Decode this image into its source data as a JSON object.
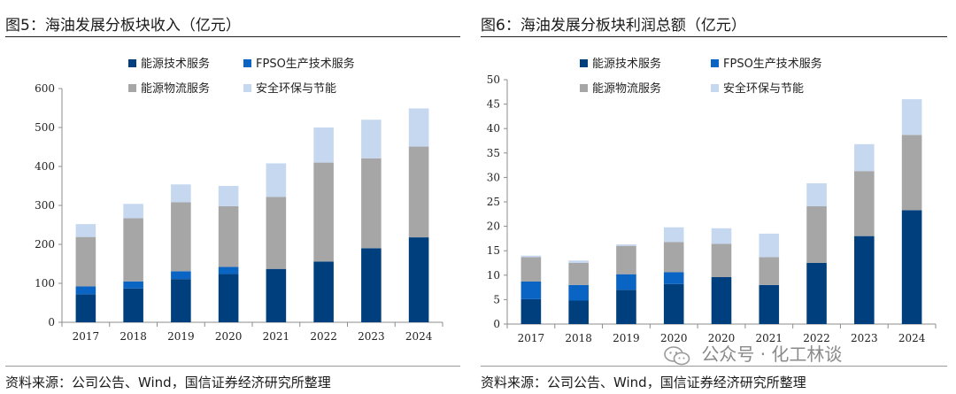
{
  "colors": {
    "energy_tech": "#003F7D",
    "fpso": "#0A64C4",
    "logistics": "#A6A6A6",
    "safety_env": "#C6D8EF"
  },
  "left": {
    "title": "图5：海油发展分板块收入（亿元）",
    "source": "资料来源：公司公告、Wind，国信证券经济研究所整理"
  },
  "right": {
    "title": "图6：海油发展分板块利润总额（亿元）",
    "source": "资料来源：公司公告、Wind，国信证券经济研究所整理"
  },
  "watermark": {
    "text": "公众号 · 化工林谈",
    "icon": "wechat-icon"
  },
  "chart_data": [
    {
      "type": "bar",
      "stacked": true,
      "title": "图5：海油发展分板块收入（亿元）",
      "categories": [
        "2017",
        "2018",
        "2019",
        "2020",
        "2021",
        "2022",
        "2023",
        "2024"
      ],
      "ylim": [
        0,
        600
      ],
      "yticks": [
        0,
        100,
        200,
        300,
        400,
        500,
        600
      ],
      "grid": false,
      "legend_position": "top",
      "series": [
        {
          "name": "能源技术服务",
          "color": "#003F7D",
          "values": [
            72,
            87,
            111,
            124,
            137,
            156,
            190,
            218
          ]
        },
        {
          "name": "FPSO生产技术服务",
          "color": "#0A64C4",
          "values": [
            20,
            18,
            20,
            18,
            0,
            0,
            0,
            0
          ]
        },
        {
          "name": "能源物流服务",
          "color": "#A6A6A6",
          "values": [
            127,
            162,
            177,
            156,
            185,
            254,
            231,
            233
          ]
        },
        {
          "name": "安全环保与节能",
          "color": "#C6D8EF",
          "values": [
            33,
            37,
            46,
            52,
            86,
            90,
            99,
            98
          ]
        }
      ]
    },
    {
      "type": "bar",
      "stacked": true,
      "title": "图6：海油发展分板块利润总额（亿元）",
      "categories": [
        "2017",
        "2018",
        "2019",
        "2020",
        "2020",
        "2021",
        "2022",
        "2023",
        "2024"
      ],
      "ylim": [
        0,
        50
      ],
      "yticks": [
        0,
        5,
        10,
        15,
        20,
        25,
        30,
        35,
        40,
        45,
        50
      ],
      "grid": false,
      "legend_position": "top",
      "series": [
        {
          "name": "能源技术服务",
          "color": "#003F7D",
          "values": [
            5.1,
            4.8,
            7.0,
            8.2,
            9.6,
            8.0,
            12.5,
            18.0,
            23.3
          ]
        },
        {
          "name": "FPSO生产技术服务",
          "color": "#0A64C4",
          "values": [
            3.6,
            3.2,
            3.2,
            2.4,
            0,
            0,
            0,
            0,
            0
          ]
        },
        {
          "name": "能源物流服务",
          "color": "#A6A6A6",
          "values": [
            5.0,
            4.5,
            5.8,
            6.2,
            6.8,
            5.7,
            11.6,
            13.3,
            15.4
          ]
        },
        {
          "name": "安全环保与节能",
          "color": "#C6D8EF",
          "values": [
            0.3,
            0.5,
            0.3,
            3.0,
            3.2,
            4.8,
            4.7,
            5.5,
            7.3
          ]
        }
      ]
    }
  ]
}
